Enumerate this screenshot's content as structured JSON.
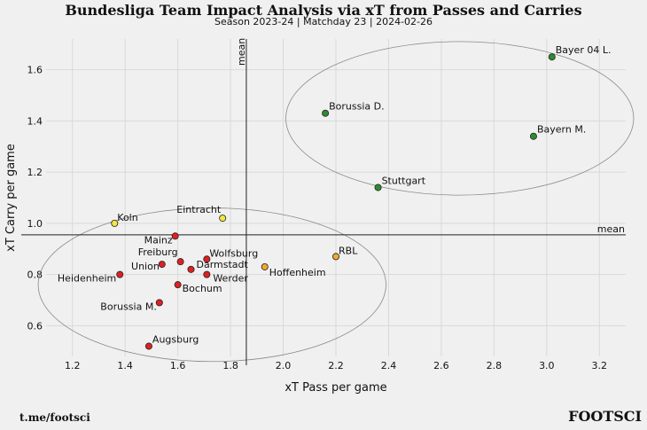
{
  "header": {
    "title": "Bundesliga Team Impact Analysis via xT from Passes and Carries",
    "subtitle": "Season 2023-24 | Matchday 23 | 2024-02-26"
  },
  "footer": {
    "source": "t.me/footsci",
    "brand": "FOOTSCI"
  },
  "colors": {
    "background": "#f0f0f0",
    "grid": "#d9d9d9",
    "high": "#2e8b2e",
    "mid": "#f0a830",
    "low": "#e02020",
    "outlier": "#f2e640"
  },
  "chart_data": {
    "type": "scatter",
    "title": "Bundesliga Team Impact Analysis via xT from Passes and Carries",
    "subtitle": "Season 2023-24 | Matchday 23 | 2024-02-26",
    "xlabel": "xT Pass per game",
    "ylabel": "xT Carry per game",
    "xlim": [
      1.1,
      3.3
    ],
    "ylim": [
      0.48,
      1.72
    ],
    "xticks": [
      1.2,
      1.4,
      1.6,
      1.8,
      2.0,
      2.2,
      2.4,
      2.6,
      2.8,
      3.0,
      3.2
    ],
    "yticks": [
      0.6,
      0.8,
      1.0,
      1.2,
      1.4,
      1.6
    ],
    "grid": true,
    "mean_lines": {
      "x": 1.86,
      "y": 0.955,
      "label": "mean"
    },
    "points": [
      {
        "team": "Bayer 04 L.",
        "x": 3.02,
        "y": 1.65,
        "group": "high"
      },
      {
        "team": "Borussia D.",
        "x": 2.16,
        "y": 1.43,
        "group": "high"
      },
      {
        "team": "Bayern M.",
        "x": 2.95,
        "y": 1.34,
        "group": "high"
      },
      {
        "team": "Stuttgart",
        "x": 2.36,
        "y": 1.14,
        "group": "high"
      },
      {
        "team": "Eintracht",
        "x": 1.77,
        "y": 1.02,
        "group": "outlier"
      },
      {
        "team": "Koln",
        "x": 1.36,
        "y": 1.0,
        "group": "outlier"
      },
      {
        "team": "Mainz",
        "x": 1.59,
        "y": 0.95,
        "group": "low"
      },
      {
        "team": "RBL",
        "x": 2.2,
        "y": 0.87,
        "group": "mid"
      },
      {
        "team": "Hoffenheim",
        "x": 1.93,
        "y": 0.83,
        "group": "mid"
      },
      {
        "team": "Wolfsburg",
        "x": 1.71,
        "y": 0.86,
        "group": "low"
      },
      {
        "team": "Freiburg",
        "x": 1.61,
        "y": 0.85,
        "group": "low"
      },
      {
        "team": "Darmstadt",
        "x": 1.65,
        "y": 0.82,
        "group": "low"
      },
      {
        "team": "Union",
        "x": 1.54,
        "y": 0.84,
        "group": "low"
      },
      {
        "team": "Werder",
        "x": 1.71,
        "y": 0.8,
        "group": "low"
      },
      {
        "team": "Heidenheim",
        "x": 1.38,
        "y": 0.8,
        "group": "low"
      },
      {
        "team": "Bochum",
        "x": 1.6,
        "y": 0.76,
        "group": "low"
      },
      {
        "team": "Borussia M.",
        "x": 1.53,
        "y": 0.69,
        "group": "low"
      },
      {
        "team": "Augsburg",
        "x": 1.49,
        "y": 0.52,
        "group": "low"
      }
    ],
    "clusters": [
      {
        "cx": 2.67,
        "cy": 1.41,
        "rx": 0.66,
        "ry": 0.3
      },
      {
        "cx": 1.73,
        "cy": 0.76,
        "rx": 0.66,
        "ry": 0.3
      }
    ]
  }
}
